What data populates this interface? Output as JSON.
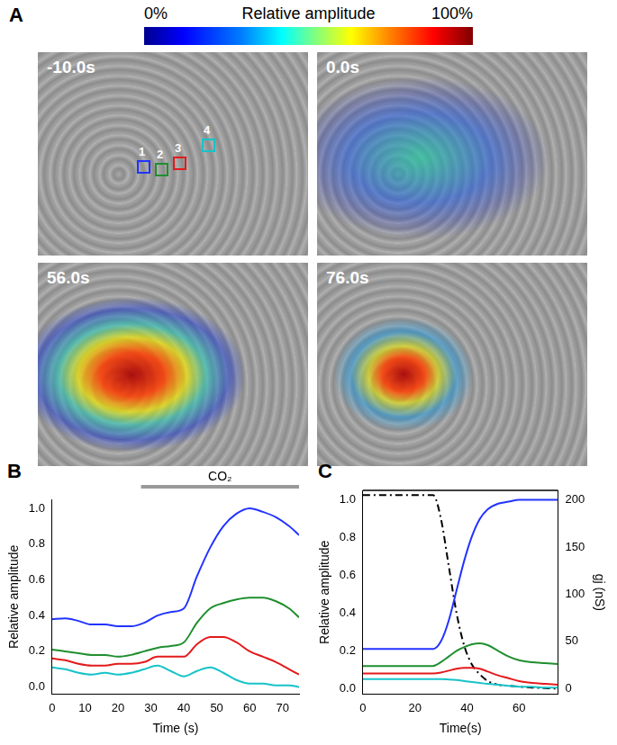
{
  "panel_a": {
    "panel_label": "A",
    "colorbar": {
      "title": "Relative amplitude",
      "range": [
        0,
        100
      ],
      "ticks": [
        {
          "value": 0,
          "label": "0%"
        },
        {
          "value": 100,
          "label": "100%"
        }
      ]
    },
    "frames": [
      "-10.0s",
      "0.0s",
      "56.0s",
      "76.0s"
    ],
    "regions": [
      {
        "label": "1",
        "color": "#2233ff"
      },
      {
        "label": "2",
        "color": "#1f8f2f"
      },
      {
        "label": "3",
        "color": "#e31a1c"
      },
      {
        "label": "4",
        "color": "#17c3c9"
      }
    ]
  },
  "chart_data": [
    {
      "type": "line",
      "panel_label": "B",
      "x_label": "Time (s)",
      "y_label": "Relative amplitude",
      "x": [
        0,
        4,
        8,
        12,
        16,
        20,
        24,
        28,
        32,
        36,
        40,
        44,
        48,
        52,
        56,
        60,
        64,
        68,
        72,
        75
      ],
      "series": [
        {
          "color": "#2233ff",
          "values": [
            0.38,
            0.385,
            0.37,
            0.35,
            0.35,
            0.34,
            0.34,
            0.36,
            0.4,
            0.42,
            0.44,
            0.62,
            0.78,
            0.9,
            0.97,
            1.0,
            0.98,
            0.95,
            0.9,
            0.85
          ]
        },
        {
          "color": "#1f8f2f",
          "values": [
            0.21,
            0.2,
            0.19,
            0.18,
            0.18,
            0.17,
            0.18,
            0.2,
            0.22,
            0.23,
            0.25,
            0.36,
            0.44,
            0.47,
            0.49,
            0.5,
            0.5,
            0.48,
            0.44,
            0.39
          ]
        },
        {
          "color": "#e31a1c",
          "values": [
            0.16,
            0.15,
            0.13,
            0.12,
            0.12,
            0.13,
            0.13,
            0.14,
            0.17,
            0.17,
            0.17,
            0.24,
            0.28,
            0.28,
            0.25,
            0.2,
            0.17,
            0.14,
            0.1,
            0.07
          ]
        },
        {
          "color": "#17c3c9",
          "values": [
            0.11,
            0.1,
            0.08,
            0.07,
            0.08,
            0.07,
            0.08,
            0.1,
            0.12,
            0.09,
            0.06,
            0.09,
            0.11,
            0.08,
            0.04,
            0.02,
            0.02,
            0.01,
            0.01,
            0.0
          ]
        }
      ],
      "xlim": [
        0,
        75
      ],
      "xticks": [
        0,
        10,
        20,
        30,
        40,
        50,
        60,
        70
      ],
      "ylim": [
        -0.04,
        1.05
      ],
      "yticks": [
        {
          "value": 0,
          "label": "0.0"
        },
        {
          "value": 0.2,
          "label": "0.2"
        },
        {
          "value": 0.4,
          "label": "0.4"
        },
        {
          "value": 0.6,
          "label": "0.6"
        },
        {
          "value": 0.8,
          "label": "0.8"
        },
        {
          "value": 1.0,
          "label": "1.0"
        }
      ],
      "annotations": [
        {
          "text": "CO₂",
          "x_start": 27,
          "x_end": 75
        }
      ],
      "grid": false
    },
    {
      "type": "line",
      "panel_label": "C",
      "x_label": "Time(s)",
      "y_label": "Relative amplitude",
      "y2_label": "gj (nS)",
      "x": [
        0,
        27,
        30,
        33,
        36,
        39,
        42,
        45,
        48,
        52,
        56,
        60,
        65,
        70,
        75
      ],
      "series": [
        {
          "color": "#2233ff",
          "values": [
            0.21,
            0.21,
            0.25,
            0.36,
            0.52,
            0.68,
            0.81,
            0.9,
            0.95,
            0.98,
            0.99,
            1.0,
            1.0,
            1.0,
            1.0
          ]
        },
        {
          "color": "#1f8f2f",
          "values": [
            0.12,
            0.12,
            0.14,
            0.17,
            0.2,
            0.22,
            0.235,
            0.24,
            0.23,
            0.2,
            0.17,
            0.15,
            0.14,
            0.135,
            0.13
          ]
        },
        {
          "color": "#e31a1c",
          "values": [
            0.08,
            0.08,
            0.085,
            0.095,
            0.105,
            0.11,
            0.11,
            0.105,
            0.09,
            0.07,
            0.055,
            0.04,
            0.03,
            0.025,
            0.02
          ]
        },
        {
          "color": "#17c3c9",
          "values": [
            0.05,
            0.05,
            0.05,
            0.048,
            0.045,
            0.04,
            0.035,
            0.03,
            0.025,
            0.02,
            0.015,
            0.01,
            0.01,
            0.005,
            0.005
          ]
        },
        {
          "color": "#000000",
          "line_style": "dashdot",
          "axis": "y2",
          "values": [
            205,
            205,
            180,
            130,
            80,
            45,
            25,
            15,
            8,
            4,
            3,
            2,
            1,
            0.5,
            0
          ]
        }
      ],
      "xlim": [
        0,
        75
      ],
      "xticks": [
        0,
        20,
        40,
        60
      ],
      "ylim": [
        -0.03,
        1.05
      ],
      "yticks": [
        {
          "value": 0,
          "label": "0.0"
        },
        {
          "value": 0.2,
          "label": "0.2"
        },
        {
          "value": 0.4,
          "label": "0.4"
        },
        {
          "value": 0.6,
          "label": "0.6"
        },
        {
          "value": 0.8,
          "label": "0.8"
        },
        {
          "value": 1.0,
          "label": "1.0"
        }
      ],
      "y2lim": [
        -6,
        210
      ],
      "y2ticks": [
        0,
        50,
        100,
        150,
        200
      ],
      "grid": false
    }
  ]
}
